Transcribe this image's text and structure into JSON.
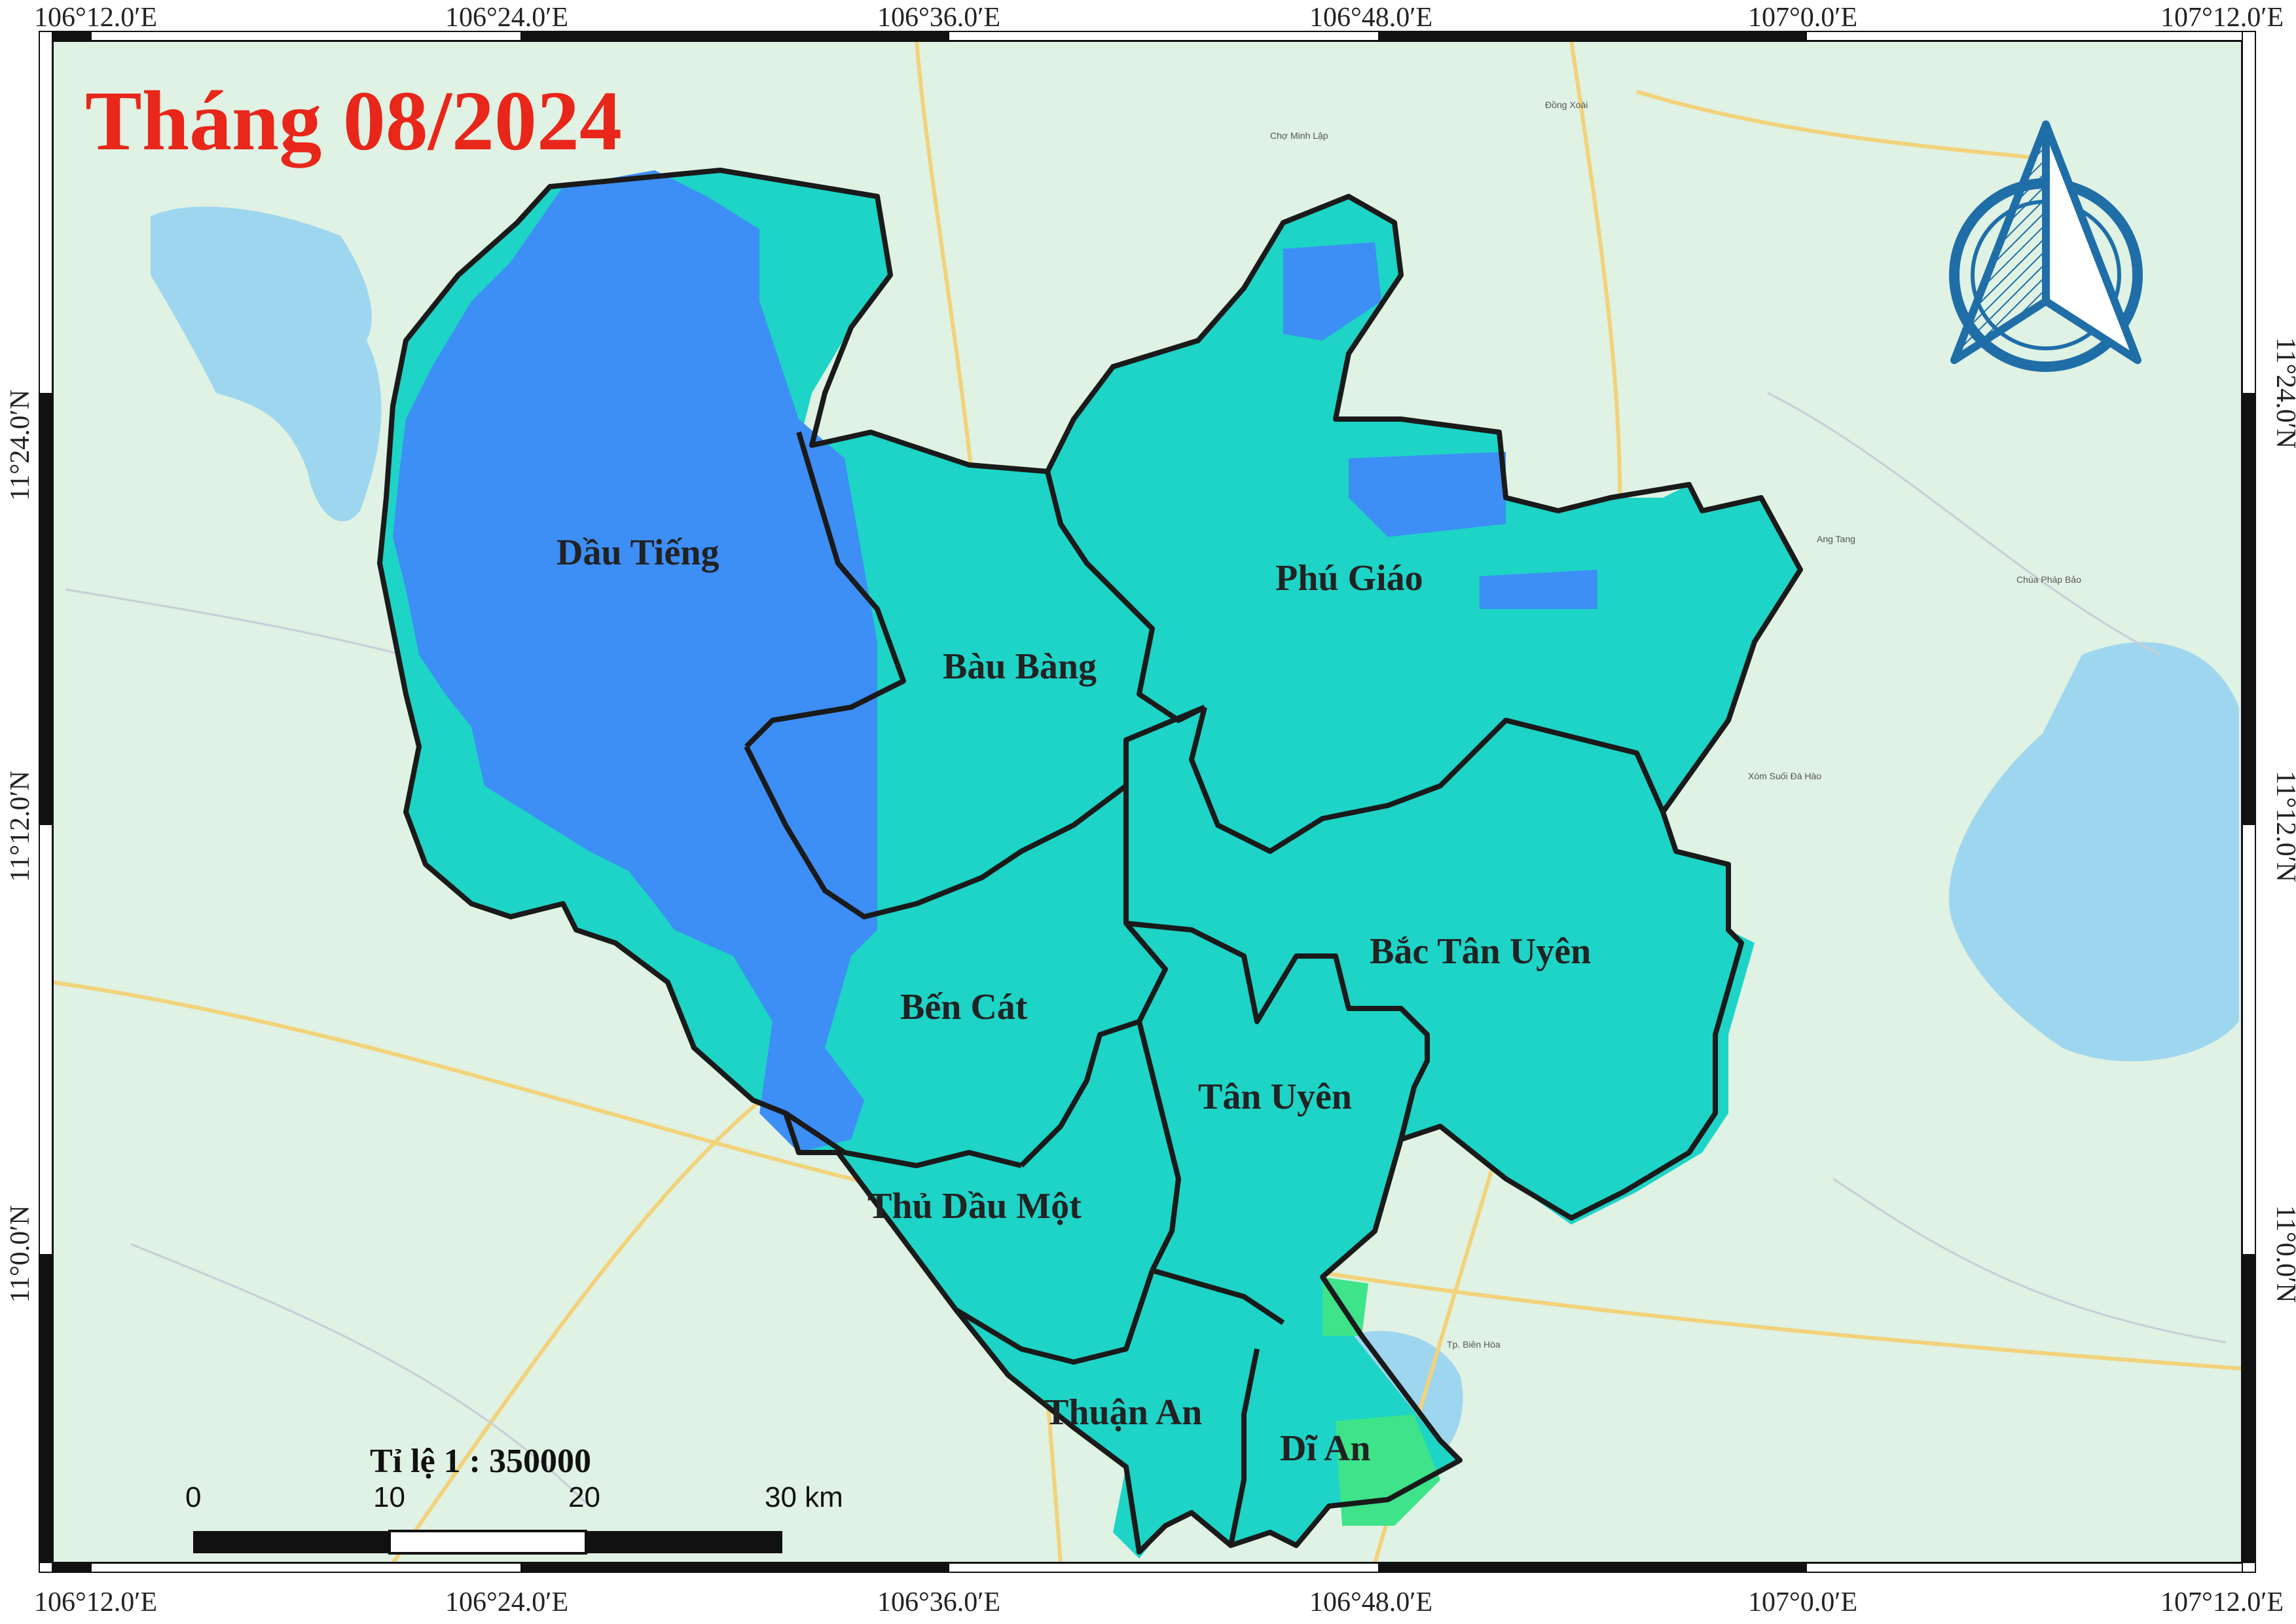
{
  "title": "Tháng 08/2024",
  "colors": {
    "title": "#e8261a",
    "class_high": "#3d8ef5",
    "class_mid": "#1dd4c6",
    "class_low": "#3ee38a",
    "boundary": "#1a1a1a",
    "basemap_land": "#dff2e3",
    "basemap_water": "#9fd6ef",
    "basemap_road": "#f7e38f"
  },
  "longitude_labels": [
    "106°12.0′E",
    "106°24.0′E",
    "106°36.0′E",
    "106°48.0′E",
    "107°0.0′E",
    "107°12.0′E"
  ],
  "latitude_labels": [
    "11°24.0′N",
    "11°12.0′N",
    "11°0.0′N"
  ],
  "districts": [
    {
      "name": "Dầu Tiếng"
    },
    {
      "name": "Bàu Bàng"
    },
    {
      "name": "Phú Giáo"
    },
    {
      "name": "Bắc Tân Uyên"
    },
    {
      "name": "Bến Cát"
    },
    {
      "name": "Tân Uyên"
    },
    {
      "name": "Thủ Dầu Một"
    },
    {
      "name": "Thuận An"
    },
    {
      "name": "Dĩ An"
    }
  ],
  "basemap_labels": [
    "Đồng Xoài",
    "Tp. Biên Hòa",
    "Ang Tang",
    "Xóm Suối Đá Hào",
    "Chợ Minh Lập",
    "Chùa Pháp Bảo"
  ],
  "north_arrow": {
    "icon": "north-arrow-icon"
  },
  "scale": {
    "ratio_text": "Tỉ lệ 1 : 350000",
    "ticks": [
      "0",
      "10",
      "20",
      "30 km"
    ]
  }
}
